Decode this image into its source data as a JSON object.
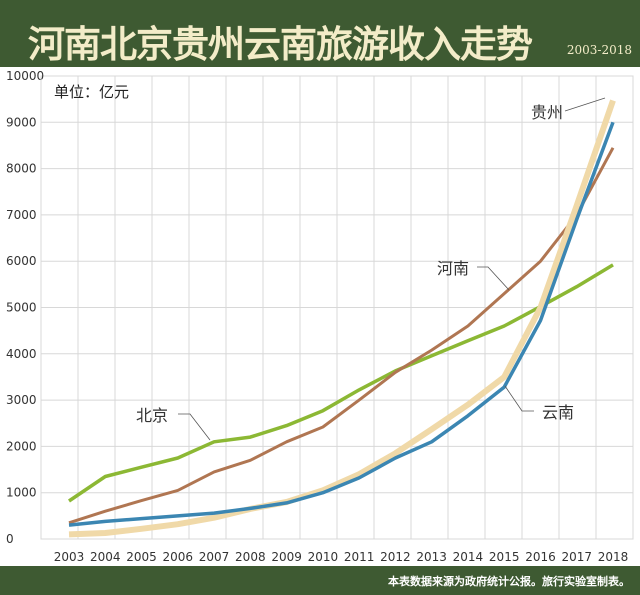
{
  "header": {
    "title": "河南北京贵州云南旅游收入走势",
    "years": "2003-2018"
  },
  "footer": {
    "source": "本表数据来源为政府统计公报。旅行实验室制表。"
  },
  "chart_data": {
    "type": "line",
    "title": "河南北京贵州云南旅游收入走势",
    "unit": "单位：亿元",
    "x": [
      "2003",
      "2004",
      "2005",
      "2006",
      "2007",
      "2008",
      "2009",
      "2010",
      "2011",
      "2012",
      "2013",
      "2014",
      "2015",
      "2016",
      "2017",
      "2018"
    ],
    "ylim": [
      0,
      10000
    ],
    "yticks": [
      "0",
      "1000",
      "2000",
      "3000",
      "4000",
      "5000",
      "6000",
      "7000",
      "8000",
      "9000",
      "10000"
    ],
    "grid": true,
    "series": [
      {
        "name": "北京",
        "color": "#8cb834",
        "values": [
          820,
          1350,
          1550,
          1750,
          2100,
          2200,
          2450,
          2770,
          3220,
          3630,
          3960,
          4280,
          4600,
          5020,
          5450,
          5920
        ]
      },
      {
        "name": "河南",
        "color": "#b07652",
        "values": [
          350,
          600,
          830,
          1050,
          1450,
          1700,
          2100,
          2420,
          3000,
          3600,
          4080,
          4600,
          5300,
          6000,
          7000,
          8450
        ]
      },
      {
        "name": "贵州",
        "color": "#f0d9a8",
        "values": [
          100,
          130,
          220,
          320,
          460,
          650,
          800,
          1050,
          1400,
          1850,
          2370,
          2900,
          3500,
          5000,
          7200,
          9470
        ]
      },
      {
        "name": "云南",
        "color": "#3b86b2",
        "values": [
          300,
          380,
          440,
          500,
          560,
          660,
          780,
          1000,
          1320,
          1750,
          2100,
          2660,
          3280,
          4720,
          6900,
          9000
        ]
      }
    ]
  }
}
